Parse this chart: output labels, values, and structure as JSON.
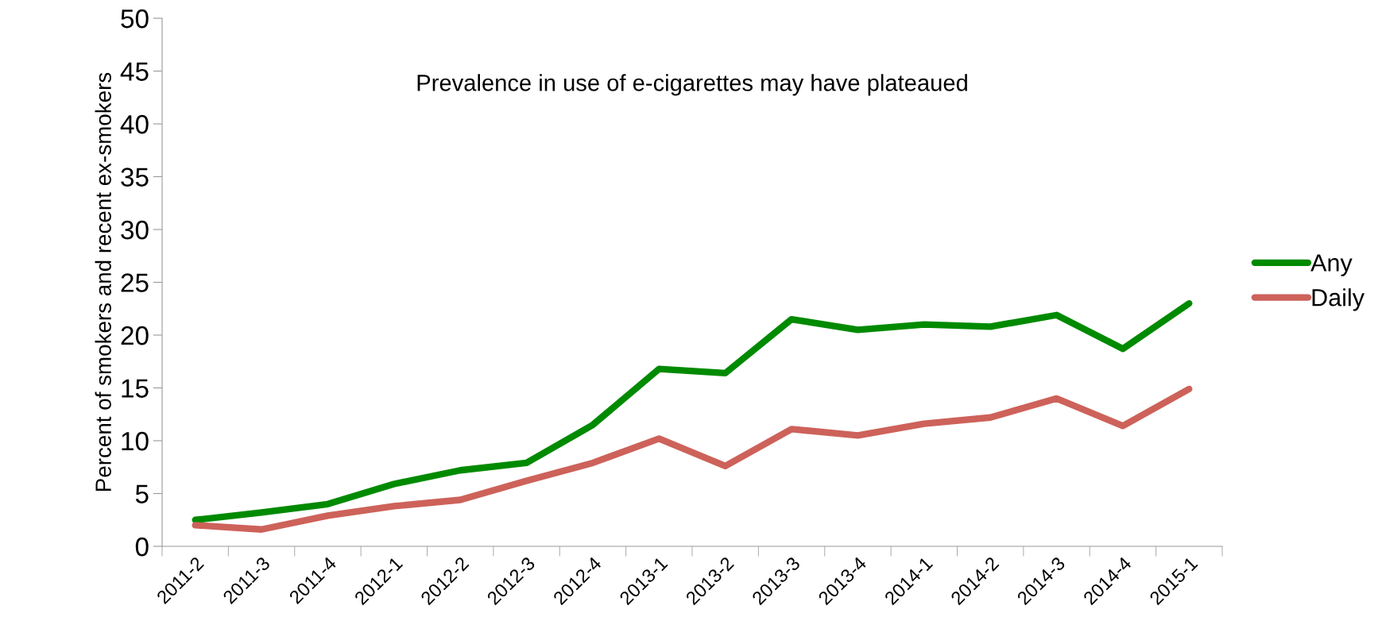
{
  "chart_data": {
    "type": "line",
    "title": "Prevalence in use of e-cigarettes may have plateaued",
    "ylabel": "Percent of smokers and recent ex-smokers",
    "categories": [
      "2011-2",
      "2011-3",
      "2011-4",
      "2012-1",
      "2012-2",
      "2012-3",
      "2012-4",
      "2013-1",
      "2013-2",
      "2013-3",
      "2013-4",
      "2014-1",
      "2014-2",
      "2014-3",
      "2014-4",
      "2015-1"
    ],
    "series": [
      {
        "name": "Any",
        "color": "#008a00",
        "values": [
          2.5,
          3.2,
          4.0,
          5.9,
          7.2,
          7.9,
          11.5,
          16.8,
          16.4,
          21.5,
          20.5,
          21.0,
          20.8,
          21.9,
          18.7,
          23.0
        ]
      },
      {
        "name": "Daily",
        "color": "#cd625a",
        "values": [
          2.0,
          1.6,
          2.9,
          3.8,
          4.4,
          6.2,
          7.9,
          10.2,
          7.6,
          11.1,
          10.5,
          11.6,
          12.2,
          14.0,
          11.4,
          14.9
        ]
      }
    ],
    "ylim": [
      0,
      50
    ],
    "yticks": [
      0,
      5,
      10,
      15,
      20,
      25,
      30,
      35,
      40,
      45,
      50
    ],
    "grid": false,
    "legend": "right",
    "marker": "none",
    "line_style": "solid"
  }
}
